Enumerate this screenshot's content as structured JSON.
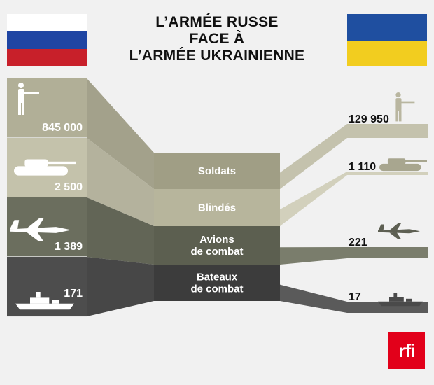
{
  "title": {
    "line1": "L’ARMÉE RUSSE",
    "line2": "FACE À",
    "line3": "L’ARMÉE UKRAINIENNE"
  },
  "flags": {
    "russia": [
      "#ffffff",
      "#1f45a3",
      "#c8202a"
    ],
    "ukraine": [
      "#1f4fa0",
      "#f2cd1f"
    ]
  },
  "categories": [
    {
      "label": [
        "Soldats"
      ],
      "russia": "845 000",
      "ukraine": "129 950",
      "icon": "soldier-icon",
      "color_left": "#b1af97",
      "color_mid": "#a09e85",
      "color_right": "#c4c2ad"
    },
    {
      "label": [
        "Blindés"
      ],
      "russia": "2 500",
      "ukraine": "1 110",
      "icon": "tank-icon",
      "color_left": "#c4c2ab",
      "color_mid": "#b7b59c",
      "color_right": "#d2d0bc"
    },
    {
      "label": [
        "Avions",
        "de combat"
      ],
      "russia": "1 389",
      "ukraine": "221",
      "icon": "fighter-jet-icon",
      "color_left": "#6b6e5e",
      "color_mid": "#5c5f50",
      "color_right": "#7a7d6c"
    },
    {
      "label": [
        "Bateaux",
        "de combat"
      ],
      "russia": "171",
      "ukraine": "17",
      "icon": "warship-icon",
      "color_left": "#4d4d4d",
      "color_mid": "#3c3c3c",
      "color_right": "#5a5a5a"
    }
  ],
  "logo": {
    "text": "rfi",
    "color": "#e2001a"
  }
}
